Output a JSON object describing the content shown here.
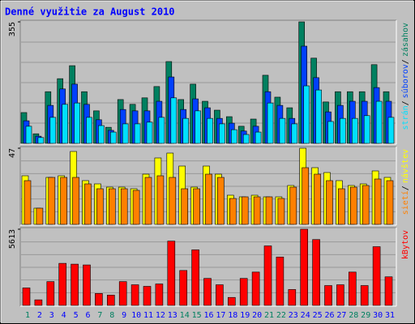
{
  "title": "Denné využitie za August 2010",
  "chart_data": [
    {
      "type": "bar",
      "ylim": [
        0,
        355
      ],
      "yticks": [
        355
      ],
      "legend_separator": "/",
      "series": [
        {
          "name": "zásahov",
          "color": "#008060",
          "values": [
            90,
            28,
            151,
            189,
            227,
            151,
            95,
            47,
            128,
            114,
            133,
            166,
            239,
            128,
            173,
            123,
            97,
            78,
            50,
            71,
            199,
            135,
            104,
            355,
            249,
            121,
            151,
            151,
            151,
            230,
            151
          ]
        },
        {
          "name": "súborov",
          "color": "#0040ff",
          "values": [
            66,
            21,
            111,
            159,
            173,
            114,
            69,
            38,
            99,
            95,
            95,
            123,
            194,
            99,
            130,
            104,
            73,
            59,
            36,
            50,
            151,
            111,
            73,
            284,
            192,
            92,
            111,
            123,
            123,
            163,
            123
          ]
        },
        {
          "name": "strán",
          "color": "#00e0ff",
          "values": [
            50,
            17,
            76,
            114,
            118,
            76,
            52,
            33,
            57,
            57,
            62,
            76,
            133,
            73,
            95,
            73,
            57,
            40,
            26,
            33,
            118,
            73,
            57,
            168,
            156,
            64,
            73,
            73,
            81,
            123,
            76
          ]
        }
      ]
    },
    {
      "type": "bar",
      "ylim": [
        0,
        47
      ],
      "yticks": [
        47
      ],
      "legend_separator": "/",
      "series": [
        {
          "name": "návštev",
          "color": "#ffff00",
          "values": [
            30,
            10,
            29,
            30,
            45,
            27,
            25,
            23,
            23,
            22,
            31,
            41,
            44,
            36,
            23,
            36,
            31,
            18,
            17,
            18,
            17,
            17,
            24,
            47,
            35,
            32,
            27,
            24,
            25,
            33,
            29
          ]
        },
        {
          "name": "sietí",
          "color": "#ff8000",
          "values": [
            27,
            10,
            29,
            29,
            29,
            25,
            22,
            22,
            22,
            21,
            29,
            30,
            29,
            22,
            22,
            31,
            29,
            16,
            17,
            17,
            17,
            16,
            23,
            35,
            31,
            27,
            22,
            23,
            24,
            28,
            27
          ]
        }
      ]
    },
    {
      "type": "bar",
      "ylim": [
        0,
        5613
      ],
      "yticks": [
        5613
      ],
      "categories": [
        "1",
        "2",
        "3",
        "4",
        "5",
        "6",
        "7",
        "8",
        "9",
        "10",
        "11",
        "12",
        "13",
        "14",
        "15",
        "16",
        "17",
        "18",
        "19",
        "20",
        "21",
        "22",
        "23",
        "24",
        "25",
        "26",
        "27",
        "28",
        "29",
        "30",
        "31"
      ],
      "highlighted_categories": [
        "1",
        "7",
        "8",
        "14",
        "15",
        "21",
        "22",
        "28",
        "29"
      ],
      "highlight_color": "#008060",
      "category_color": "#0000ff",
      "series": [
        {
          "name": "kBytov",
          "color": "#ff0000",
          "values": [
            1286,
            409,
            1754,
            3099,
            3040,
            2982,
            877,
            760,
            1754,
            1520,
            1403,
            1579,
            4736,
            2573,
            4093,
            1988,
            1520,
            585,
            1988,
            2456,
            4385,
            3566,
            1169,
            5613,
            4853,
            1462,
            1520,
            2456,
            1462,
            4327,
            2105
          ]
        }
      ]
    }
  ]
}
